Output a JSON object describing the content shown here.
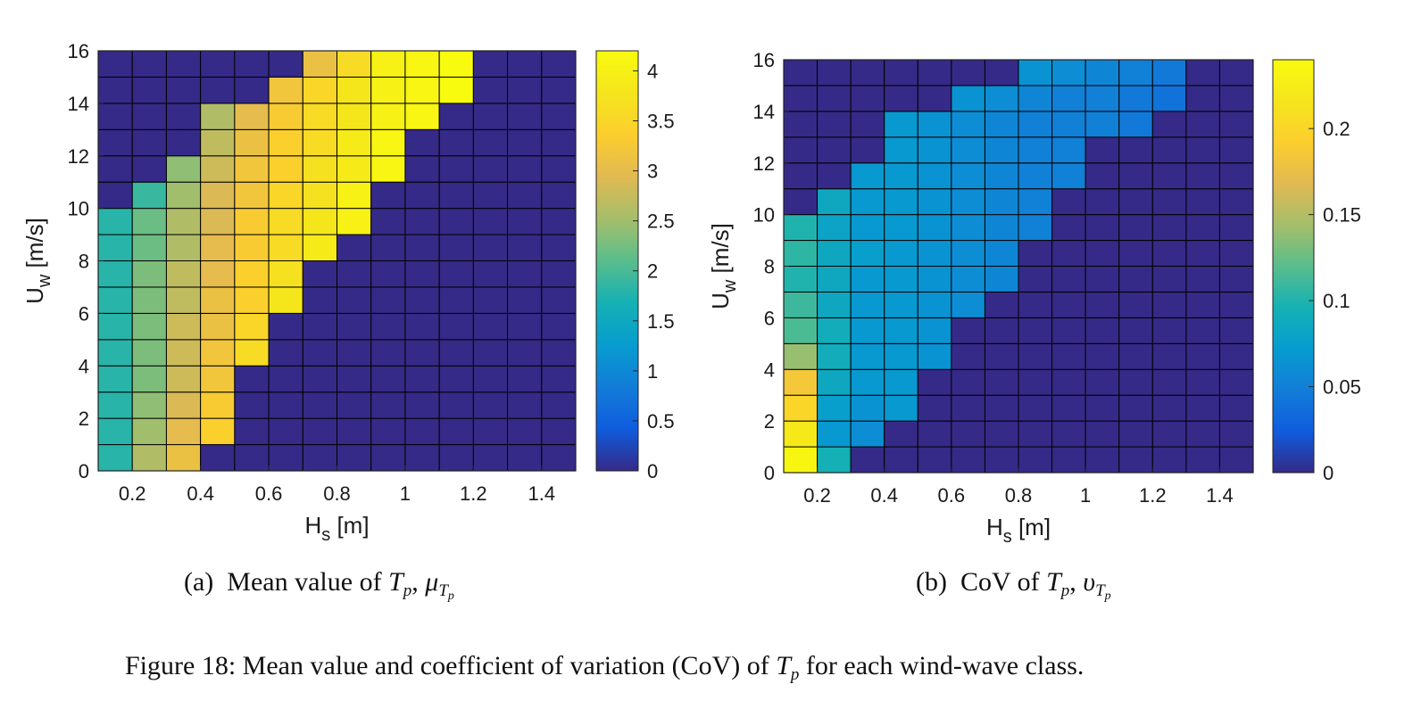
{
  "figure": {
    "caption": "Figure 18: Mean value and coefficient of variation (CoV) of T_p for each wind-wave class.",
    "caption_prefix": "Figure 18: Mean value and coefficient of variation (CoV) of",
    "caption_suffix": "for each wind-wave class."
  },
  "subcaptions": [
    {
      "tag": "(a)",
      "text": "Mean value of",
      "symbol": "μ"
    },
    {
      "tag": "(b)",
      "text": "CoV of",
      "symbol": "υ"
    }
  ],
  "chart_data": [
    {
      "type": "heatmap",
      "title": "",
      "xlabel": "H_s [m]",
      "ylabel": "U_w [m/s]",
      "xlim": [
        0.1,
        1.5
      ],
      "ylim": [
        0,
        16
      ],
      "xticks": [
        0.2,
        0.4,
        0.6,
        0.8,
        1,
        1.2,
        1.4
      ],
      "xtick_labels": [
        "0.2",
        "0.4",
        "0.6",
        "0.8",
        "1",
        "1.2",
        "1.4"
      ],
      "yticks": [
        0,
        2,
        4,
        6,
        8,
        10,
        12,
        14,
        16
      ],
      "ytick_labels": [
        "0",
        "2",
        "4",
        "6",
        "8",
        "10",
        "12",
        "14",
        "16"
      ],
      "x_bin_edges": [
        0.1,
        0.2,
        0.3,
        0.4,
        0.5,
        0.6,
        0.7,
        0.8,
        0.9,
        1.0,
        1.1,
        1.2,
        1.3,
        1.4,
        1.5
      ],
      "y_bin_edges": [
        0,
        1,
        2,
        3,
        4,
        5,
        6,
        7,
        8,
        9,
        10,
        11,
        12,
        13,
        14,
        15,
        16
      ],
      "colormap": "parula",
      "clim": [
        0,
        4.2
      ],
      "colorbar_ticks": [
        0,
        0.5,
        1,
        1.5,
        2,
        2.5,
        3,
        3.5,
        4
      ],
      "colorbar_tick_labels": [
        "0",
        "0.5",
        "1",
        "1.5",
        "2",
        "2.5",
        "3",
        "3.5",
        "4"
      ],
      "grid": true,
      "values": [
        [
          1.8,
          2.6,
          3.1,
          0,
          0,
          0,
          0,
          0,
          0,
          0,
          0,
          0,
          0,
          0
        ],
        [
          1.8,
          2.5,
          3.0,
          3.4,
          0,
          0,
          0,
          0,
          0,
          0,
          0,
          0,
          0,
          0
        ],
        [
          1.8,
          2.4,
          2.9,
          3.3,
          0,
          0,
          0,
          0,
          0,
          0,
          0,
          0,
          0,
          0
        ],
        [
          1.8,
          2.3,
          2.8,
          3.2,
          0,
          0,
          0,
          0,
          0,
          0,
          0,
          0,
          0,
          0
        ],
        [
          1.8,
          2.3,
          2.8,
          3.2,
          3.6,
          0,
          0,
          0,
          0,
          0,
          0,
          0,
          0,
          0
        ],
        [
          1.8,
          2.3,
          2.8,
          3.1,
          3.5,
          0,
          0,
          0,
          0,
          0,
          0,
          0,
          0,
          0
        ],
        [
          1.8,
          2.3,
          2.7,
          3.1,
          3.4,
          3.8,
          0,
          0,
          0,
          0,
          0,
          0,
          0,
          0
        ],
        [
          1.8,
          2.3,
          2.7,
          3.0,
          3.4,
          3.7,
          0,
          0,
          0,
          0,
          0,
          0,
          0,
          0
        ],
        [
          1.8,
          2.2,
          2.6,
          3.0,
          3.3,
          3.6,
          3.9,
          0,
          0,
          0,
          0,
          0,
          0,
          0
        ],
        [
          1.8,
          2.2,
          2.6,
          2.9,
          3.3,
          3.6,
          3.8,
          4.0,
          0,
          0,
          0,
          0,
          0,
          0
        ],
        [
          0,
          1.9,
          2.5,
          2.9,
          3.2,
          3.5,
          3.7,
          4.0,
          0,
          0,
          0,
          0,
          0,
          0
        ],
        [
          0,
          0,
          2.4,
          2.8,
          3.2,
          3.4,
          3.7,
          3.9,
          4.1,
          0,
          0,
          0,
          0,
          0
        ],
        [
          0,
          0,
          0,
          2.7,
          3.1,
          3.4,
          3.6,
          3.9,
          4.1,
          0,
          0,
          0,
          0,
          0
        ],
        [
          0,
          0,
          0,
          2.6,
          3.0,
          3.3,
          3.6,
          3.8,
          4.0,
          4.1,
          0,
          0,
          0,
          0
        ],
        [
          0,
          0,
          0,
          0,
          0,
          3.2,
          3.5,
          3.8,
          4.0,
          4.1,
          4.2,
          0,
          0,
          0
        ],
        [
          0,
          0,
          0,
          0,
          0,
          0,
          3.1,
          3.6,
          4.0,
          4.1,
          4.2,
          0,
          0,
          0
        ]
      ]
    },
    {
      "type": "heatmap",
      "title": "",
      "xlabel": "H_s [m]",
      "ylabel": "U_w [m/s]",
      "xlim": [
        0.1,
        1.5
      ],
      "ylim": [
        0,
        16
      ],
      "xticks": [
        0.2,
        0.4,
        0.6,
        0.8,
        1,
        1.2,
        1.4
      ],
      "xtick_labels": [
        "0.2",
        "0.4",
        "0.6",
        "0.8",
        "1",
        "1.2",
        "1.4"
      ],
      "yticks": [
        0,
        2,
        4,
        6,
        8,
        10,
        12,
        14,
        16
      ],
      "ytick_labels": [
        "0",
        "2",
        "4",
        "6",
        "8",
        "10",
        "12",
        "14",
        "16"
      ],
      "x_bin_edges": [
        0.1,
        0.2,
        0.3,
        0.4,
        0.5,
        0.6,
        0.7,
        0.8,
        0.9,
        1.0,
        1.1,
        1.2,
        1.3,
        1.4,
        1.5
      ],
      "y_bin_edges": [
        0,
        1,
        2,
        3,
        4,
        5,
        6,
        7,
        8,
        9,
        10,
        11,
        12,
        13,
        14,
        15,
        16
      ],
      "colormap": "parula",
      "clim": [
        0,
        0.24
      ],
      "colorbar_ticks": [
        0,
        0.05,
        0.1,
        0.15,
        0.2
      ],
      "colorbar_tick_labels": [
        "0",
        "0.05",
        "0.1",
        "0.15",
        "0.2"
      ],
      "grid": true,
      "values": [
        [
          0.235,
          0.095,
          0,
          0,
          0,
          0,
          0,
          0,
          0,
          0,
          0,
          0,
          0,
          0
        ],
        [
          0.22,
          0.07,
          0.06,
          0,
          0,
          0,
          0,
          0,
          0,
          0,
          0,
          0,
          0,
          0
        ],
        [
          0.2,
          0.075,
          0.065,
          0.07,
          0,
          0,
          0,
          0,
          0,
          0,
          0,
          0,
          0,
          0
        ],
        [
          0.185,
          0.085,
          0.07,
          0.07,
          0,
          0,
          0,
          0,
          0,
          0,
          0,
          0,
          0,
          0
        ],
        [
          0.14,
          0.09,
          0.07,
          0.07,
          0.065,
          0,
          0,
          0,
          0,
          0,
          0,
          0,
          0,
          0
        ],
        [
          0.115,
          0.09,
          0.07,
          0.07,
          0.065,
          0,
          0,
          0,
          0,
          0,
          0,
          0,
          0,
          0
        ],
        [
          0.11,
          0.085,
          0.07,
          0.07,
          0.065,
          0.06,
          0,
          0,
          0,
          0,
          0,
          0,
          0,
          0
        ],
        [
          0.1,
          0.085,
          0.07,
          0.07,
          0.065,
          0.06,
          0.055,
          0,
          0,
          0,
          0,
          0,
          0,
          0
        ],
        [
          0.105,
          0.085,
          0.075,
          0.07,
          0.065,
          0.06,
          0.055,
          0,
          0,
          0,
          0,
          0,
          0,
          0
        ],
        [
          0.1,
          0.08,
          0.07,
          0.07,
          0.065,
          0.06,
          0.055,
          0.05,
          0,
          0,
          0,
          0,
          0,
          0
        ],
        [
          0,
          0.085,
          0.07,
          0.07,
          0.065,
          0.06,
          0.055,
          0.05,
          0,
          0,
          0,
          0,
          0,
          0
        ],
        [
          0,
          0,
          0.07,
          0.07,
          0.065,
          0.06,
          0.055,
          0.05,
          0.05,
          0,
          0,
          0,
          0,
          0
        ],
        [
          0,
          0,
          0,
          0.07,
          0.065,
          0.06,
          0.055,
          0.05,
          0.05,
          0,
          0,
          0,
          0,
          0
        ],
        [
          0,
          0,
          0,
          0.07,
          0.065,
          0.06,
          0.055,
          0.05,
          0.05,
          0.05,
          0.045,
          0,
          0,
          0
        ],
        [
          0,
          0,
          0,
          0,
          0,
          0.065,
          0.06,
          0.055,
          0.05,
          0.05,
          0.045,
          0.04,
          0,
          0
        ],
        [
          0,
          0,
          0,
          0,
          0,
          0,
          0,
          0.065,
          0.06,
          0.055,
          0.05,
          0.045,
          0,
          0
        ]
      ]
    }
  ]
}
